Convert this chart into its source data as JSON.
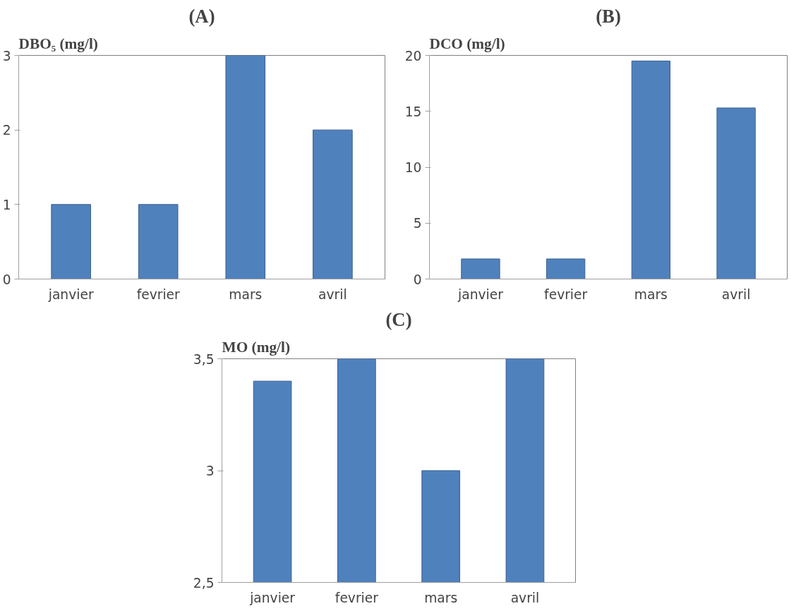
{
  "chart_data": [
    {
      "type": "bar",
      "title": "(A)",
      "ylabel": "DBO₅ (mg/l)",
      "categories": [
        "janvier",
        "fevrier",
        "mars",
        "avril"
      ],
      "series": [
        {
          "color": "#4f81bd",
          "values": [
            1,
            1,
            3,
            2
          ]
        }
      ],
      "ylim": [
        0,
        3
      ],
      "yticks": [
        0,
        1,
        2,
        3
      ],
      "grid": false
    },
    {
      "type": "bar",
      "title": "(B)",
      "ylabel": "DCO (mg/l)",
      "categories": [
        "janvier",
        "fevrier",
        "mars",
        "avril"
      ],
      "series": [
        {
          "color": "#4f81bd",
          "values": [
            1.8,
            1.8,
            19.5,
            15.3
          ]
        }
      ],
      "ylim": [
        0,
        20
      ],
      "yticks": [
        0,
        5,
        10,
        15,
        20
      ],
      "grid": false
    },
    {
      "type": "bar",
      "title": "(C)",
      "ylabel": "MO (mg/l)",
      "categories": [
        "janvier",
        "fevrier",
        "mars",
        "avril"
      ],
      "series": [
        {
          "color": "#4f81bd",
          "values": [
            3.4,
            3.5,
            3.0,
            3.5
          ]
        }
      ],
      "ylim": [
        2.5,
        3.5
      ],
      "yticks": [
        {
          "value": 2.5,
          "label": "2,5"
        },
        {
          "value": 3,
          "label": "3"
        },
        {
          "value": 3.5,
          "label": "3,5"
        }
      ],
      "grid": false
    }
  ]
}
